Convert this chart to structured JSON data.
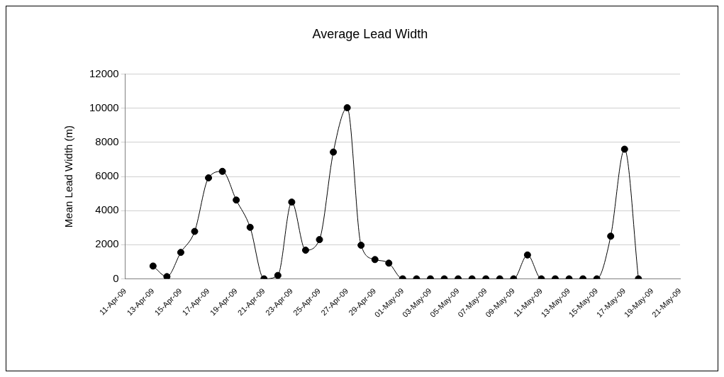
{
  "chart_data": {
    "type": "line",
    "title": "Average Lead Width",
    "ylabel": "Mean Lead Width (m)",
    "x": [
      "--04-13",
      "--04-14",
      "--04-15",
      "--04-16",
      "--04-17",
      "--04-18",
      "--04-19",
      "--04-20",
      "--04-21",
      "--04-22",
      "--04-23",
      "--04-24",
      "--04-25",
      "--04-26",
      "--04-27",
      "--04-28",
      "--04-29",
      "--04-30",
      "--05-01",
      "--05-02",
      "--05-03",
      "--05-04",
      "--05-05",
      "--05-06",
      "--05-07",
      "--05-08",
      "--05-09",
      "--05-10",
      "--05-11",
      "--05-12",
      "--05-13",
      "--05-14",
      "--05-15",
      "--05-16",
      "--05-17",
      "--05-18"
    ],
    "series": [
      {
        "color": "#000000",
        "values": [
          750,
          130,
          1550,
          2780,
          5920,
          6300,
          4620,
          3020,
          0,
          200,
          4500,
          1680,
          2300,
          7430,
          10030,
          1970,
          1130,
          920,
          0,
          0,
          0,
          0,
          0,
          0,
          0,
          0,
          0,
          1400,
          0,
          0,
          0,
          0,
          0,
          2500,
          7600,
          0
        ]
      }
    ],
    "xlim": [
      "--04-11",
      "--05-21"
    ],
    "xticks": [
      {
        "value": "--04-11",
        "label": "11-Apr-09"
      },
      {
        "value": "--04-13",
        "label": "13-Apr-09"
      },
      {
        "value": "--04-15",
        "label": "15-Apr-09"
      },
      {
        "value": "--04-17",
        "label": "17-Apr-09"
      },
      {
        "value": "--04-19",
        "label": "19-Apr-09"
      },
      {
        "value": "--04-21",
        "label": "21-Apr-09"
      },
      {
        "value": "--04-23",
        "label": "23-Apr-09"
      },
      {
        "value": "--04-25",
        "label": "25-Apr-09"
      },
      {
        "value": "--04-27",
        "label": "27-Apr-09"
      },
      {
        "value": "--04-29",
        "label": "29-Apr-09"
      },
      {
        "value": "--05-01",
        "label": "01-May-09"
      },
      {
        "value": "--05-03",
        "label": "03-May-09"
      },
      {
        "value": "--05-05",
        "label": "05-May-09"
      },
      {
        "value": "--05-07",
        "label": "07-May-09"
      },
      {
        "value": "--05-09",
        "label": "09-May-09"
      },
      {
        "value": "--05-11",
        "label": "11-May-09"
      },
      {
        "value": "--05-13",
        "label": "13-May-09"
      },
      {
        "value": "--05-15",
        "label": "15-May-09"
      },
      {
        "value": "--05-17",
        "label": "17-May-09"
      },
      {
        "value": "--05-19",
        "label": "19-May-09"
      },
      {
        "value": "--05-21",
        "label": "21-May-09"
      }
    ],
    "ylim": [
      0,
      12000
    ],
    "yticks": [
      0,
      2000,
      4000,
      6000,
      8000,
      10000,
      12000
    ],
    "grid": "y",
    "legend": false,
    "marker": "circle",
    "line_style": "solid"
  }
}
